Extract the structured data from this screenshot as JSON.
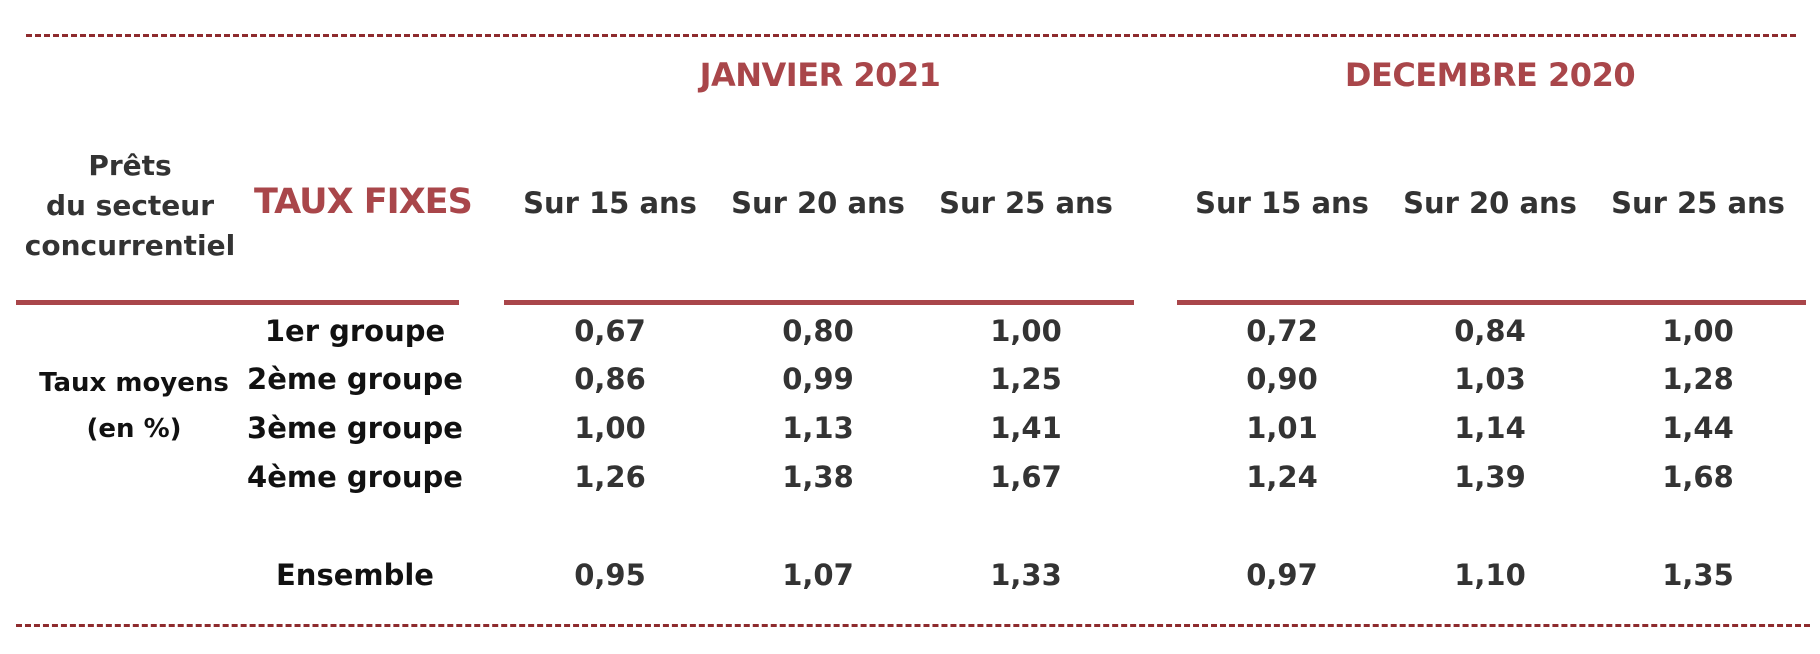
{
  "header": {
    "prets_lines": [
      "Prêts",
      "du secteur",
      "concurrentiel"
    ],
    "taux_fixes": "TAUX FIXES",
    "periods": [
      "JANVIER 2021",
      "DECEMBRE 2020"
    ],
    "columns": [
      "Sur 15 ans",
      "Sur 20 ans",
      "Sur 25 ans"
    ]
  },
  "side_label": [
    "Taux moyens",
    "(en %)"
  ],
  "rows": [
    {
      "label": "1er groupe",
      "values": [
        "0,67",
        "0,80",
        "1,00",
        "0,72",
        "0,84",
        "1,00"
      ]
    },
    {
      "label": "2ème groupe",
      "values": [
        "0,86",
        "0,99",
        "1,25",
        "0,90",
        "1,03",
        "1,28"
      ]
    },
    {
      "label": "3ème groupe",
      "values": [
        "1,00",
        "1,13",
        "1,41",
        "1,01",
        "1,14",
        "1,44"
      ]
    },
    {
      "label": "4ème groupe",
      "values": [
        "1,26",
        "1,38",
        "1,67",
        "1,24",
        "1,39",
        "1,68"
      ]
    },
    {
      "label": "Ensemble",
      "values": [
        "0,95",
        "1,07",
        "1,33",
        "0,97",
        "1,10",
        "1,35"
      ]
    }
  ],
  "colors": {
    "accent": "#a9464a",
    "dash": "#8e2b2e",
    "text": "#333333"
  }
}
